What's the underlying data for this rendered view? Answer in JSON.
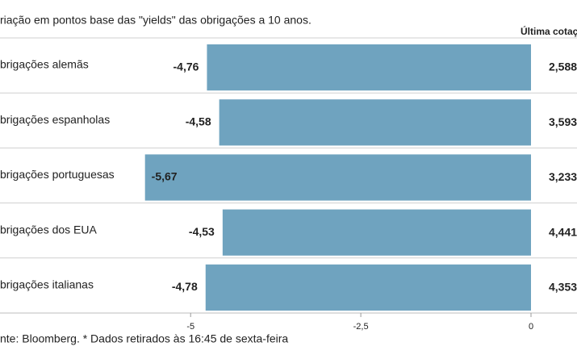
{
  "chart_data": {
    "type": "hbar",
    "title": "riação em pontos base das \"yields\" das obrigações a 10 anos.",
    "column_header": "Última cotaç",
    "categories": [
      "brigações alemãs",
      "brigações espanholas",
      "brigações portuguesas",
      "brigações dos EUA",
      "brigações italianas"
    ],
    "values": [
      -4.76,
      -4.58,
      -5.67,
      -4.53,
      -4.78
    ],
    "value_labels": [
      "-4,76",
      "-4,58",
      "-5,67",
      "-4,53",
      "-4,78"
    ],
    "last_quotes": [
      "2,588",
      "3,593",
      "3,233",
      "4,441",
      "4,353"
    ],
    "color": "#6fa3bf",
    "xlim": [
      -7.8,
      0
    ],
    "xticks": [
      -5,
      {
        "value": -2.5,
        "label": "-2,5"
      },
      0
    ],
    "source": "nte: Bloomberg.  * Dados retirados às 16:45 de sexta-feira"
  }
}
